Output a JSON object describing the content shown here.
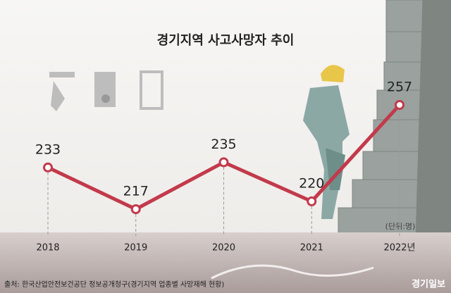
{
  "chart_data": {
    "type": "line",
    "title": "경기지역 사고사망자 추이",
    "categories": [
      "2018",
      "2019",
      "2020",
      "2021",
      "2022년"
    ],
    "values": [
      233,
      217,
      235,
      220,
      257
    ],
    "color": "#c23a4b",
    "unit_note": "(단위:명)",
    "source": "출처: 한국산업안전보건공단 정보공개청구(경기지역 업종별 사망재해 현황)",
    "logo": "경기일보"
  }
}
